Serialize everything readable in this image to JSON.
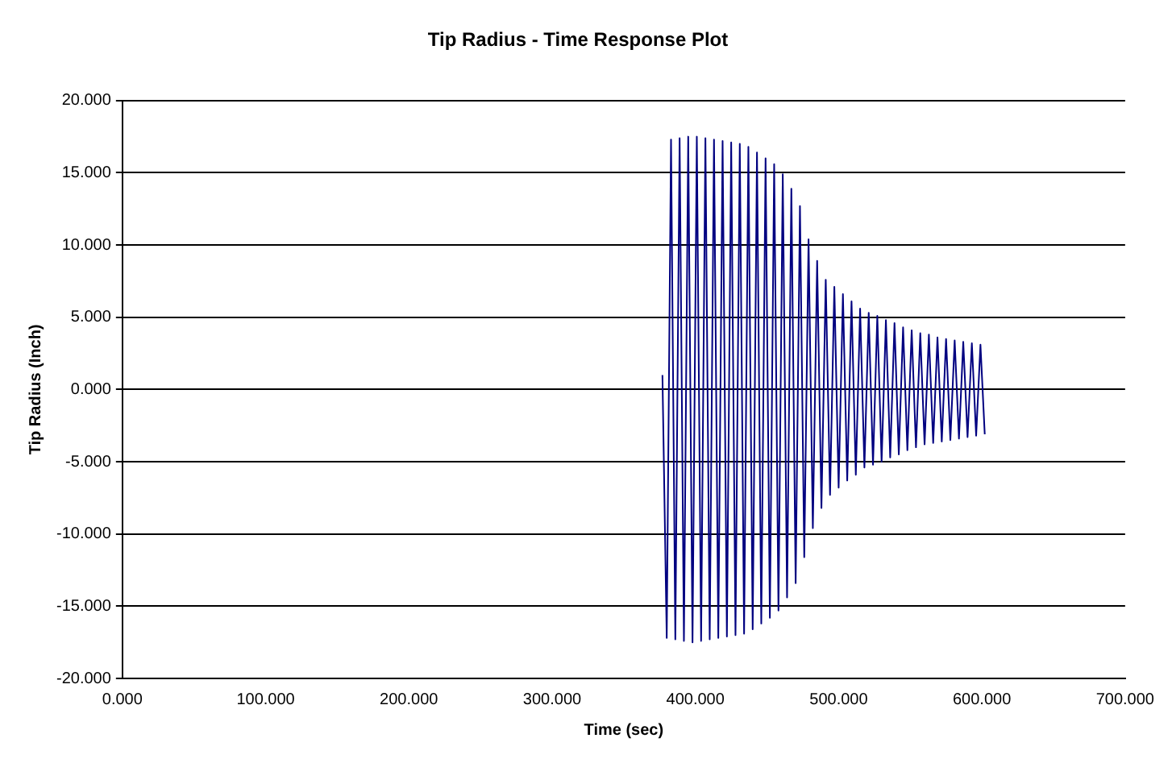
{
  "chart_data": {
    "type": "line",
    "title": "Tip Radius - Time Response Plot",
    "xlabel": "Time (sec)",
    "ylabel": "Tip Radius (Inch)",
    "xlim": [
      0,
      700
    ],
    "xticks": [
      {
        "value": 0,
        "label": "0.000"
      },
      {
        "value": 100,
        "label": "100.000"
      },
      {
        "value": 200,
        "label": "200.000"
      },
      {
        "value": 300,
        "label": "300.000"
      },
      {
        "value": 400,
        "label": "400.000"
      },
      {
        "value": 500,
        "label": "500.000"
      },
      {
        "value": 600,
        "label": "600.000"
      },
      {
        "value": 700,
        "label": "700.000"
      }
    ],
    "ylim": [
      -20,
      20
    ],
    "yticks": [
      {
        "value": -20,
        "label": "-20.000"
      },
      {
        "value": -15,
        "label": "-15.000"
      },
      {
        "value": -10,
        "label": "-10.000"
      },
      {
        "value": -5,
        "label": "-5.000"
      },
      {
        "value": 0,
        "label": "0.000"
      },
      {
        "value": 5,
        "label": "5.000"
      },
      {
        "value": 10,
        "label": "10.000"
      },
      {
        "value": 15,
        "label": "15.000"
      },
      {
        "value": 20,
        "label": "20.000"
      }
    ],
    "grid": "y",
    "legend": false,
    "marker": "none",
    "line_style": "solid",
    "x": [
      377,
      380,
      383,
      386,
      389,
      392,
      395,
      398,
      401,
      404,
      407,
      410,
      413,
      416,
      419,
      422,
      425,
      428,
      431,
      434,
      437,
      440,
      443,
      446,
      449,
      452,
      455,
      458,
      461,
      464,
      467,
      470,
      473,
      476,
      479,
      482,
      485,
      488,
      491,
      494,
      497,
      500,
      503,
      506,
      509,
      512,
      515,
      518,
      521,
      524,
      527,
      530,
      533,
      536,
      539,
      542,
      545,
      548,
      551,
      554,
      557,
      560,
      563,
      566,
      569,
      572,
      575,
      578,
      581,
      584,
      587,
      590,
      593,
      596,
      599,
      602
    ],
    "series": [
      {
        "color": "#000080",
        "values": [
          1.0,
          -17.2,
          17.3,
          -17.3,
          17.4,
          -17.4,
          17.5,
          -17.5,
          17.5,
          -17.4,
          17.4,
          -17.3,
          17.3,
          -17.2,
          17.2,
          -17.1,
          17.1,
          -17.0,
          17.0,
          -16.9,
          16.8,
          -16.6,
          16.4,
          -16.2,
          16.0,
          -15.8,
          15.6,
          -15.3,
          14.9,
          -14.4,
          13.9,
          -13.4,
          12.7,
          -11.6,
          10.4,
          -9.6,
          8.9,
          -8.2,
          7.6,
          -7.3,
          7.1,
          -6.8,
          6.6,
          -6.3,
          6.1,
          -5.9,
          5.6,
          -5.4,
          5.3,
          -5.2,
          5.1,
          -5.0,
          4.8,
          -4.7,
          4.6,
          -4.5,
          4.3,
          -4.2,
          4.1,
          -4.0,
          3.9,
          -3.8,
          3.8,
          -3.7,
          3.6,
          -3.6,
          3.5,
          -3.5,
          3.4,
          -3.4,
          3.3,
          -3.3,
          3.2,
          -3.2,
          3.1,
          -3.1
        ]
      }
    ]
  }
}
